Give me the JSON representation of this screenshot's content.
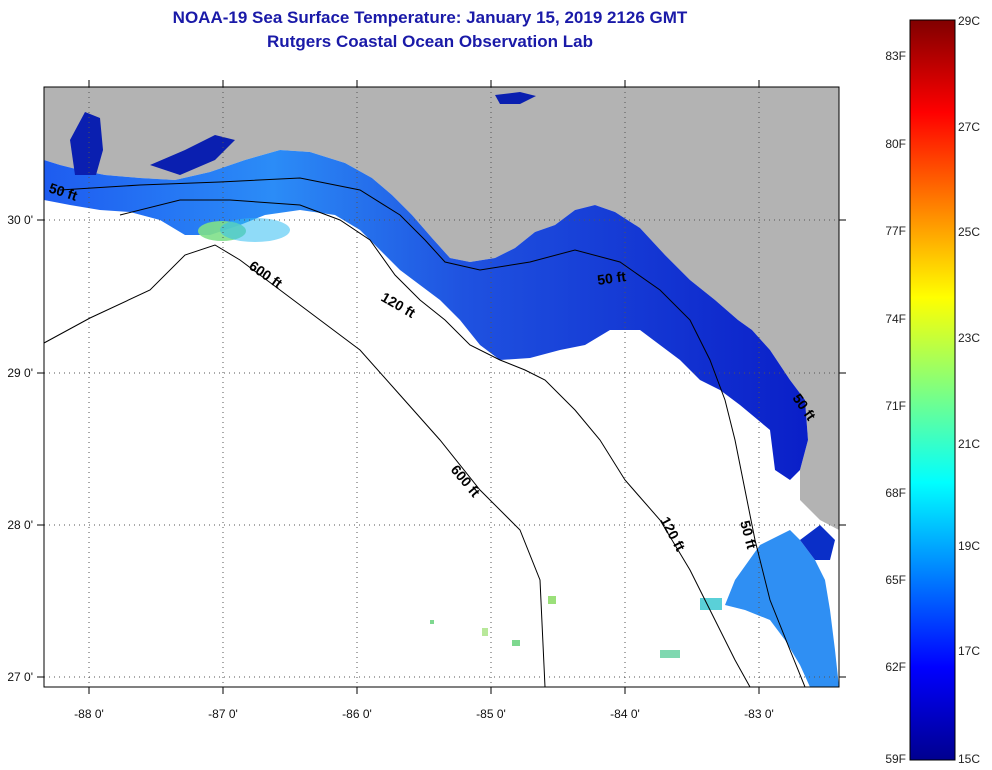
{
  "title": {
    "line1": "NOAA-19 Sea Surface Temperature:  January 15, 2019 2126 GMT",
    "line2": "Rutgers Coastal Ocean Observation Lab"
  },
  "map": {
    "lon_ticks": [
      "-88 0'",
      "-87 0'",
      "-86 0'",
      "-85 0'",
      "-84 0'",
      "-83 0'"
    ],
    "lat_ticks": [
      "30 0'",
      "29 0'",
      "28 0'",
      "27 0'"
    ],
    "contour_labels": [
      "50 ft",
      "600 ft",
      "120 ft",
      "600 ft",
      "120 ft",
      "50 ft",
      "50 ft",
      "50 ft"
    ],
    "colors": {
      "land": "#b3b3b3",
      "no_data": "#ffffff",
      "contour": "#000000"
    }
  },
  "colorbar": {
    "celsius_labels": [
      "29C",
      "27C",
      "25C",
      "23C",
      "21C",
      "19C",
      "17C",
      "15C"
    ],
    "fahrenheit_labels": [
      "83F",
      "80F",
      "77F",
      "74F",
      "71F",
      "68F",
      "65F",
      "62F",
      "59F"
    ],
    "range_c": [
      15,
      29
    ],
    "colormap": "jet"
  }
}
